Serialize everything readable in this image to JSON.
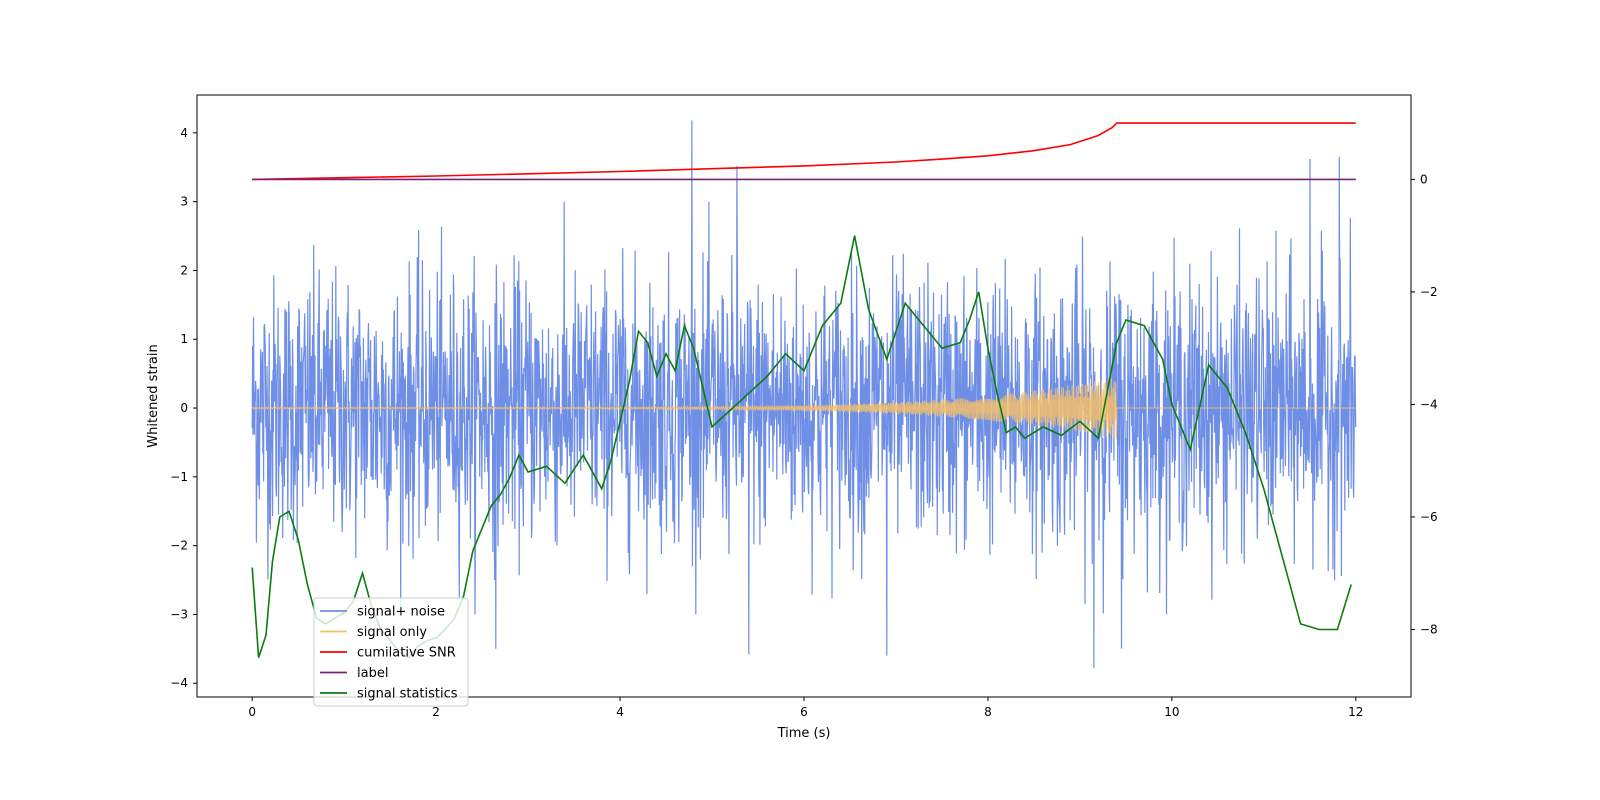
{
  "chart_data": {
    "type": "line",
    "xlabel": "Time (s)",
    "ylabel": "Whitened strain",
    "xlim": [
      -0.6,
      12.6
    ],
    "ylim": [
      -4.2,
      4.55
    ],
    "y2lim": [
      -9.2,
      1.5
    ],
    "xticks": [
      "0",
      "2",
      "4",
      "6",
      "8",
      "10",
      "12"
    ],
    "yticks": [
      "−4",
      "−3",
      "−2",
      "−1",
      "0",
      "1",
      "2",
      "3",
      "4"
    ],
    "y2ticks": [
      "−8",
      "−6",
      "−4",
      "−2",
      "0"
    ],
    "legend_position": "lower-left",
    "series": [
      {
        "name": "signal+ noise",
        "color": "#6f8fe6",
        "axis": "left",
        "description_stats": {
          "x_start": 0,
          "x_end": 12,
          "typical_amplitude": 1.6,
          "max": 4.18,
          "min": -3.78
        },
        "spikes": [
          {
            "x": 4.78,
            "y": 4.18
          },
          {
            "x": 5.27,
            "y": 3.52
          },
          {
            "x": 11.5,
            "y": 3.62
          },
          {
            "x": 11.82,
            "y": 3.65
          },
          {
            "x": 9.15,
            "y": -3.78
          },
          {
            "x": 6.9,
            "y": -3.6
          },
          {
            "x": 5.4,
            "y": -3.58
          },
          {
            "x": 2.65,
            "y": -3.5
          },
          {
            "x": 9.45,
            "y": -3.5
          }
        ]
      },
      {
        "name": "signal only",
        "color": "#f5c06a",
        "axis": "left",
        "chirp_end_time": 9.4,
        "chirp_peak_amplitude": 0.45
      },
      {
        "name": "cumilative SNR",
        "color": "#ff0000",
        "axis": "right",
        "x": [
          0,
          1,
          2,
          3,
          4,
          5,
          6,
          7,
          7.5,
          8,
          8.5,
          8.9,
          9.2,
          9.35,
          9.4,
          12
        ],
        "values": [
          0,
          0.03,
          0.06,
          0.1,
          0.14,
          0.19,
          0.24,
          0.31,
          0.36,
          0.42,
          0.51,
          0.62,
          0.78,
          0.92,
          1.0,
          1.0
        ]
      },
      {
        "name": "label",
        "color": "#7a1f7a",
        "axis": "right",
        "x": [
          0,
          12
        ],
        "values": [
          0,
          0
        ]
      },
      {
        "name": "signal statistics",
        "color": "#0b7d0b",
        "axis": "right",
        "x": [
          0,
          0.07,
          0.15,
          0.22,
          0.3,
          0.4,
          0.5,
          0.6,
          0.7,
          0.8,
          0.9,
          1.0,
          1.1,
          1.2,
          1.3,
          1.4,
          1.5,
          1.6,
          1.7,
          1.8,
          1.9,
          2.0,
          2.1,
          2.2,
          2.3,
          2.4,
          2.5,
          2.6,
          2.7,
          2.8,
          2.9,
          3.0,
          3.2,
          3.4,
          3.6,
          3.8,
          3.9,
          4.0,
          4.1,
          4.2,
          4.3,
          4.4,
          4.5,
          4.6,
          4.7,
          4.8,
          4.9,
          5.0,
          5.2,
          5.4,
          5.6,
          5.8,
          6.0,
          6.2,
          6.4,
          6.55,
          6.7,
          6.9,
          7.1,
          7.3,
          7.5,
          7.7,
          7.8,
          7.9,
          8.0,
          8.1,
          8.2,
          8.3,
          8.4,
          8.6,
          8.8,
          9.0,
          9.2,
          9.4,
          9.5,
          9.7,
          9.9,
          10.0,
          10.2,
          10.4,
          10.6,
          10.8,
          11.0,
          11.2,
          11.4,
          11.6,
          11.8,
          11.95
        ],
        "values": [
          -6.9,
          -8.5,
          -8.1,
          -6.8,
          -6.0,
          -5.9,
          -6.4,
          -7.2,
          -7.8,
          -7.9,
          -7.8,
          -7.7,
          -7.5,
          -7.0,
          -7.6,
          -8.0,
          -8.2,
          -8.4,
          -8.5,
          -8.3,
          -8.2,
          -8.15,
          -8.0,
          -7.8,
          -7.4,
          -6.6,
          -6.2,
          -5.8,
          -5.6,
          -5.3,
          -4.9,
          -5.2,
          -5.1,
          -5.4,
          -4.9,
          -5.5,
          -5.0,
          -4.3,
          -3.6,
          -2.7,
          -2.9,
          -3.5,
          -3.1,
          -3.4,
          -2.6,
          -3.0,
          -3.7,
          -4.4,
          -4.1,
          -3.8,
          -3.5,
          -3.1,
          -3.4,
          -2.6,
          -2.2,
          -1.0,
          -2.3,
          -3.2,
          -2.2,
          -2.6,
          -3.0,
          -2.9,
          -2.5,
          -2.0,
          -3.0,
          -3.8,
          -4.5,
          -4.4,
          -4.6,
          -4.4,
          -4.55,
          -4.3,
          -4.6,
          -2.9,
          -2.5,
          -2.6,
          -3.2,
          -4.0,
          -4.8,
          -3.3,
          -3.7,
          -4.5,
          -5.5,
          -6.7,
          -7.9,
          -8.0,
          -8.0,
          -7.2
        ]
      }
    ]
  }
}
